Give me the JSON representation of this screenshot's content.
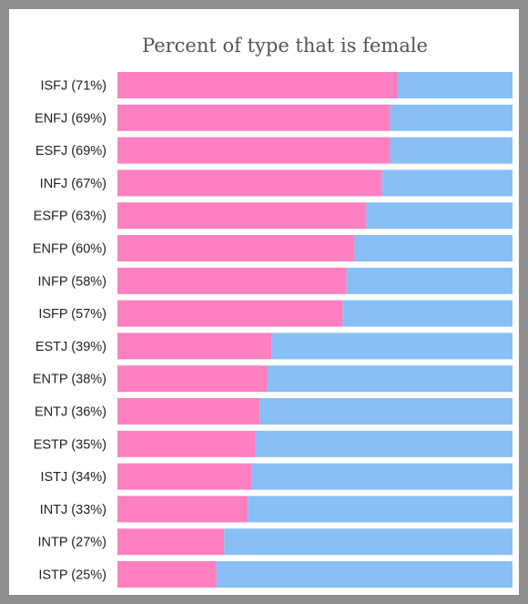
{
  "chart_data": {
    "type": "bar",
    "orientation": "horizontal",
    "stacked": true,
    "title": "Percent of type that is female",
    "xlim": [
      0,
      100
    ],
    "categories": [
      "ISFJ (71%)",
      "ENFJ (69%)",
      "ESFJ (69%)",
      "INFJ (67%)",
      "ESFP (63%)",
      "ENFP (60%)",
      "INFP (58%)",
      "ISFP (57%)",
      "ESTJ (39%)",
      "ENTP (38%)",
      "ENTJ (36%)",
      "ESTP (35%)",
      "ISTJ (34%)",
      "INTJ (33%)",
      "INTP (27%)",
      "ISTP (25%)"
    ],
    "series": [
      {
        "color": "#ff80c0",
        "values": [
          71,
          69,
          69,
          67,
          63,
          60,
          58,
          57,
          39,
          38,
          36,
          35,
          34,
          33,
          27,
          25
        ]
      },
      {
        "color": "#88bff5",
        "values": [
          29,
          31,
          31,
          33,
          37,
          40,
          42,
          43,
          61,
          62,
          64,
          65,
          66,
          67,
          73,
          75
        ]
      }
    ],
    "grid": false,
    "legend": "none"
  }
}
